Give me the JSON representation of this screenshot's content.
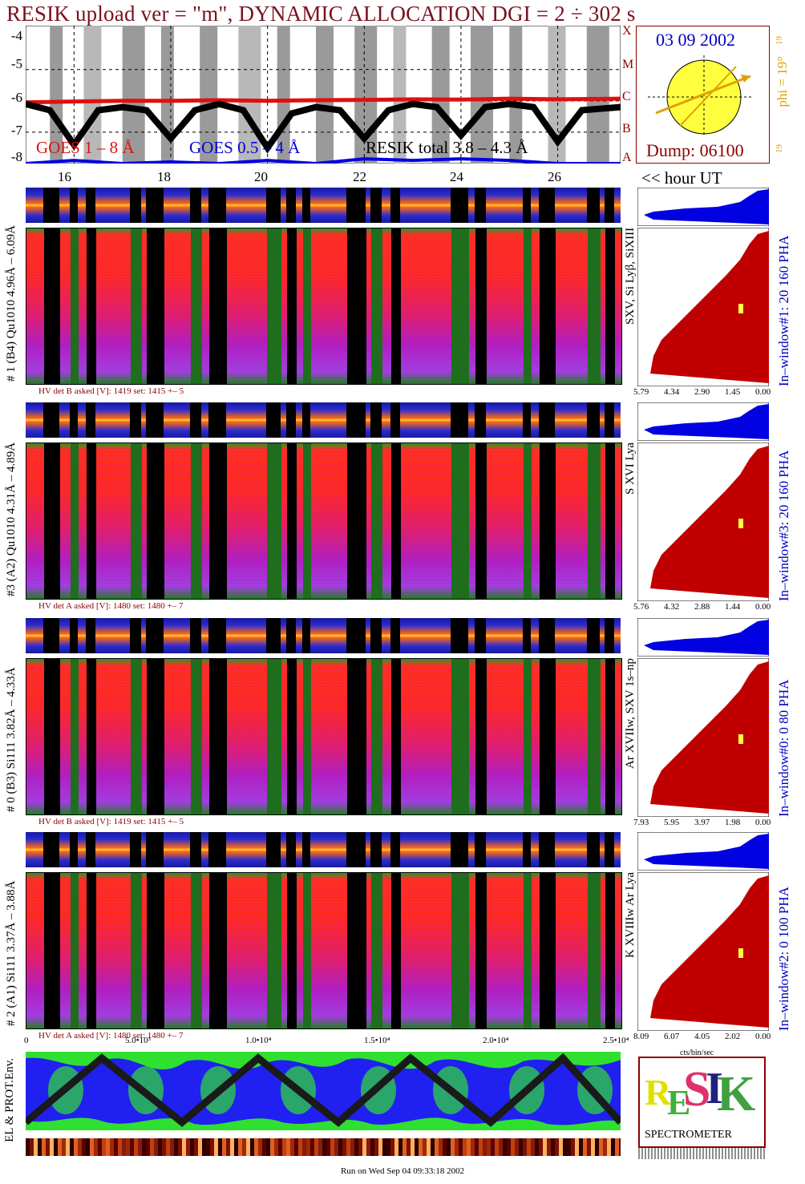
{
  "header": {
    "title": "RESIK upload ver = \"m\", DYNAMIC ALLOCATION  DGI =   2 ÷ 302 s",
    "date": "03 09 2002",
    "dump": "Dump: 06100",
    "phi": "phi = 19°",
    "phi_small_top": "19",
    "phi_small_bottom": "19",
    "hour_ut": "<< hour UT",
    "footer": "Run on Wed Sep 04 09:33:18 2002"
  },
  "colors": {
    "title": "#7a1020",
    "goes_long": "#e01010",
    "goes_short": "#0000e0",
    "resik": "#000000",
    "sun": "#ffff40",
    "orange": "#e0a000",
    "pha_blue": "#0000e0",
    "pha_red": "#c00000"
  },
  "goes": {
    "labels": [
      "GOES 1 – 8 Å",
      "GOES 0.5 – 4 Å",
      "RESIK total  3.8 – 4.3 Å"
    ],
    "y_ticks": [
      "-4",
      "-5",
      "-6",
      "-7",
      "-8"
    ],
    "class_letters": [
      "X",
      "M",
      "C",
      "B",
      "A"
    ],
    "hour_ticks": [
      "16",
      "18",
      "20",
      "22",
      "24",
      "26"
    ]
  },
  "channels": [
    {
      "id": "ch1",
      "left_label": "# 1 (B4) Qu1010 4.96Å – 6.09Å",
      "hv": "HV det B asked [V]:  1419 set:  1415  +–   5",
      "line_label": "SXV, Si Lyβ, SiXIII",
      "window_label": "In–window#1:   20 160  PHA",
      "x_ticks": [
        "5.79",
        "4.34",
        "2.90",
        "1.45",
        "0.00"
      ]
    },
    {
      "id": "ch3",
      "left_label": "#3 (A2) Qu1010  4.31Å – 4.89Å",
      "hv": "HV det A asked [V]:  1480 set:  1480  +–   7",
      "line_label": "S XVI Lya",
      "window_label": "In–window#3:   20 160  PHA",
      "x_ticks": [
        "5.76",
        "4.32",
        "2.88",
        "1.44",
        "0.00"
      ]
    },
    {
      "id": "ch0",
      "left_label": "# 0 (B3) Si111  3.82Å – 4.33Å",
      "hv": "HV det B asked [V]:  1419 set:  1415  +–   5",
      "line_label": "Ar XVIIw,  SXV 1s–np",
      "window_label": "In–window#0:   0  80  PHA",
      "x_ticks": [
        "7.93",
        "5.95",
        "3.97",
        "1.98",
        "0.00"
      ]
    },
    {
      "id": "ch2",
      "left_label": "# 2 (A1) Si111  3.37Å – 3.88Å",
      "hv": "HV det A asked [V]:  1480 set:  1480  +–   7",
      "line_label": "K XVIIIw  Ar Lya",
      "window_label": "In–window#2:   0 100  PHA",
      "x_ticks": [
        "8.09",
        "6.07",
        "4.05",
        "2.02",
        "0.00"
      ]
    }
  ],
  "bottom": {
    "x_ticks": [
      "0",
      "5.0•10³",
      "1.0•10⁴",
      "1.5•10⁴",
      "2.0•10⁴",
      "2.5•10⁴"
    ],
    "unit_label": "cts/bin/sec",
    "env_label": "EL & PROT.Env.",
    "logo_text": "SPECTROMETER"
  },
  "chart_data": {
    "type": "line",
    "title": "RESIK upload ver = \"m\", DYNAMIC ALLOCATION  DGI =   2 ÷ 302 s",
    "xlabel": "hour UT",
    "ylabel": "",
    "x_ticks": [
      16,
      18,
      20,
      22,
      24,
      26
    ],
    "ylim": [
      -8,
      -3.6
    ],
    "series": [
      {
        "name": "GOES 1 – 8 Å",
        "x": [
          15.0,
          16,
          17,
          18,
          19,
          20,
          21,
          22,
          23,
          24,
          25,
          26,
          27.3
        ],
        "y": [
          -6.05,
          -6.02,
          -6.0,
          -6.0,
          -5.98,
          -6.0,
          -5.98,
          -5.97,
          -5.95,
          -5.96,
          -5.93,
          -5.95,
          -5.93
        ]
      },
      {
        "name": "GOES 0.5 – 4 Å",
        "x": [
          15.0,
          16,
          17,
          18,
          19,
          20,
          21,
          22,
          23,
          24,
          25,
          26,
          27.3
        ],
        "y": [
          -8.0,
          -7.9,
          -8.0,
          -7.95,
          -8.0,
          -7.9,
          -8.0,
          -7.85,
          -7.9,
          -7.85,
          -7.9,
          -8.0,
          -8.0
        ]
      },
      {
        "name": "RESIK total  3.8 – 4.3 Å",
        "x": [
          15.0,
          15.5,
          16,
          16.5,
          17,
          17.5,
          18,
          18.5,
          19,
          19.5,
          20,
          20.5,
          21,
          21.5,
          22,
          22.5,
          23,
          23.5,
          24,
          24.5,
          25,
          25.5,
          26,
          26.5,
          27.3
        ],
        "y": [
          -6.1,
          -6.3,
          -7.4,
          -6.3,
          -6.2,
          -6.3,
          -7.2,
          -6.3,
          -6.1,
          -6.3,
          -7.5,
          -6.4,
          -6.2,
          -6.3,
          -7.2,
          -6.3,
          -6.1,
          -6.2,
          -7.1,
          -6.2,
          -6.1,
          -6.2,
          -7.3,
          -6.3,
          -6.2
        ]
      }
    ],
    "legend": "bottom-left",
    "grid": true
  }
}
